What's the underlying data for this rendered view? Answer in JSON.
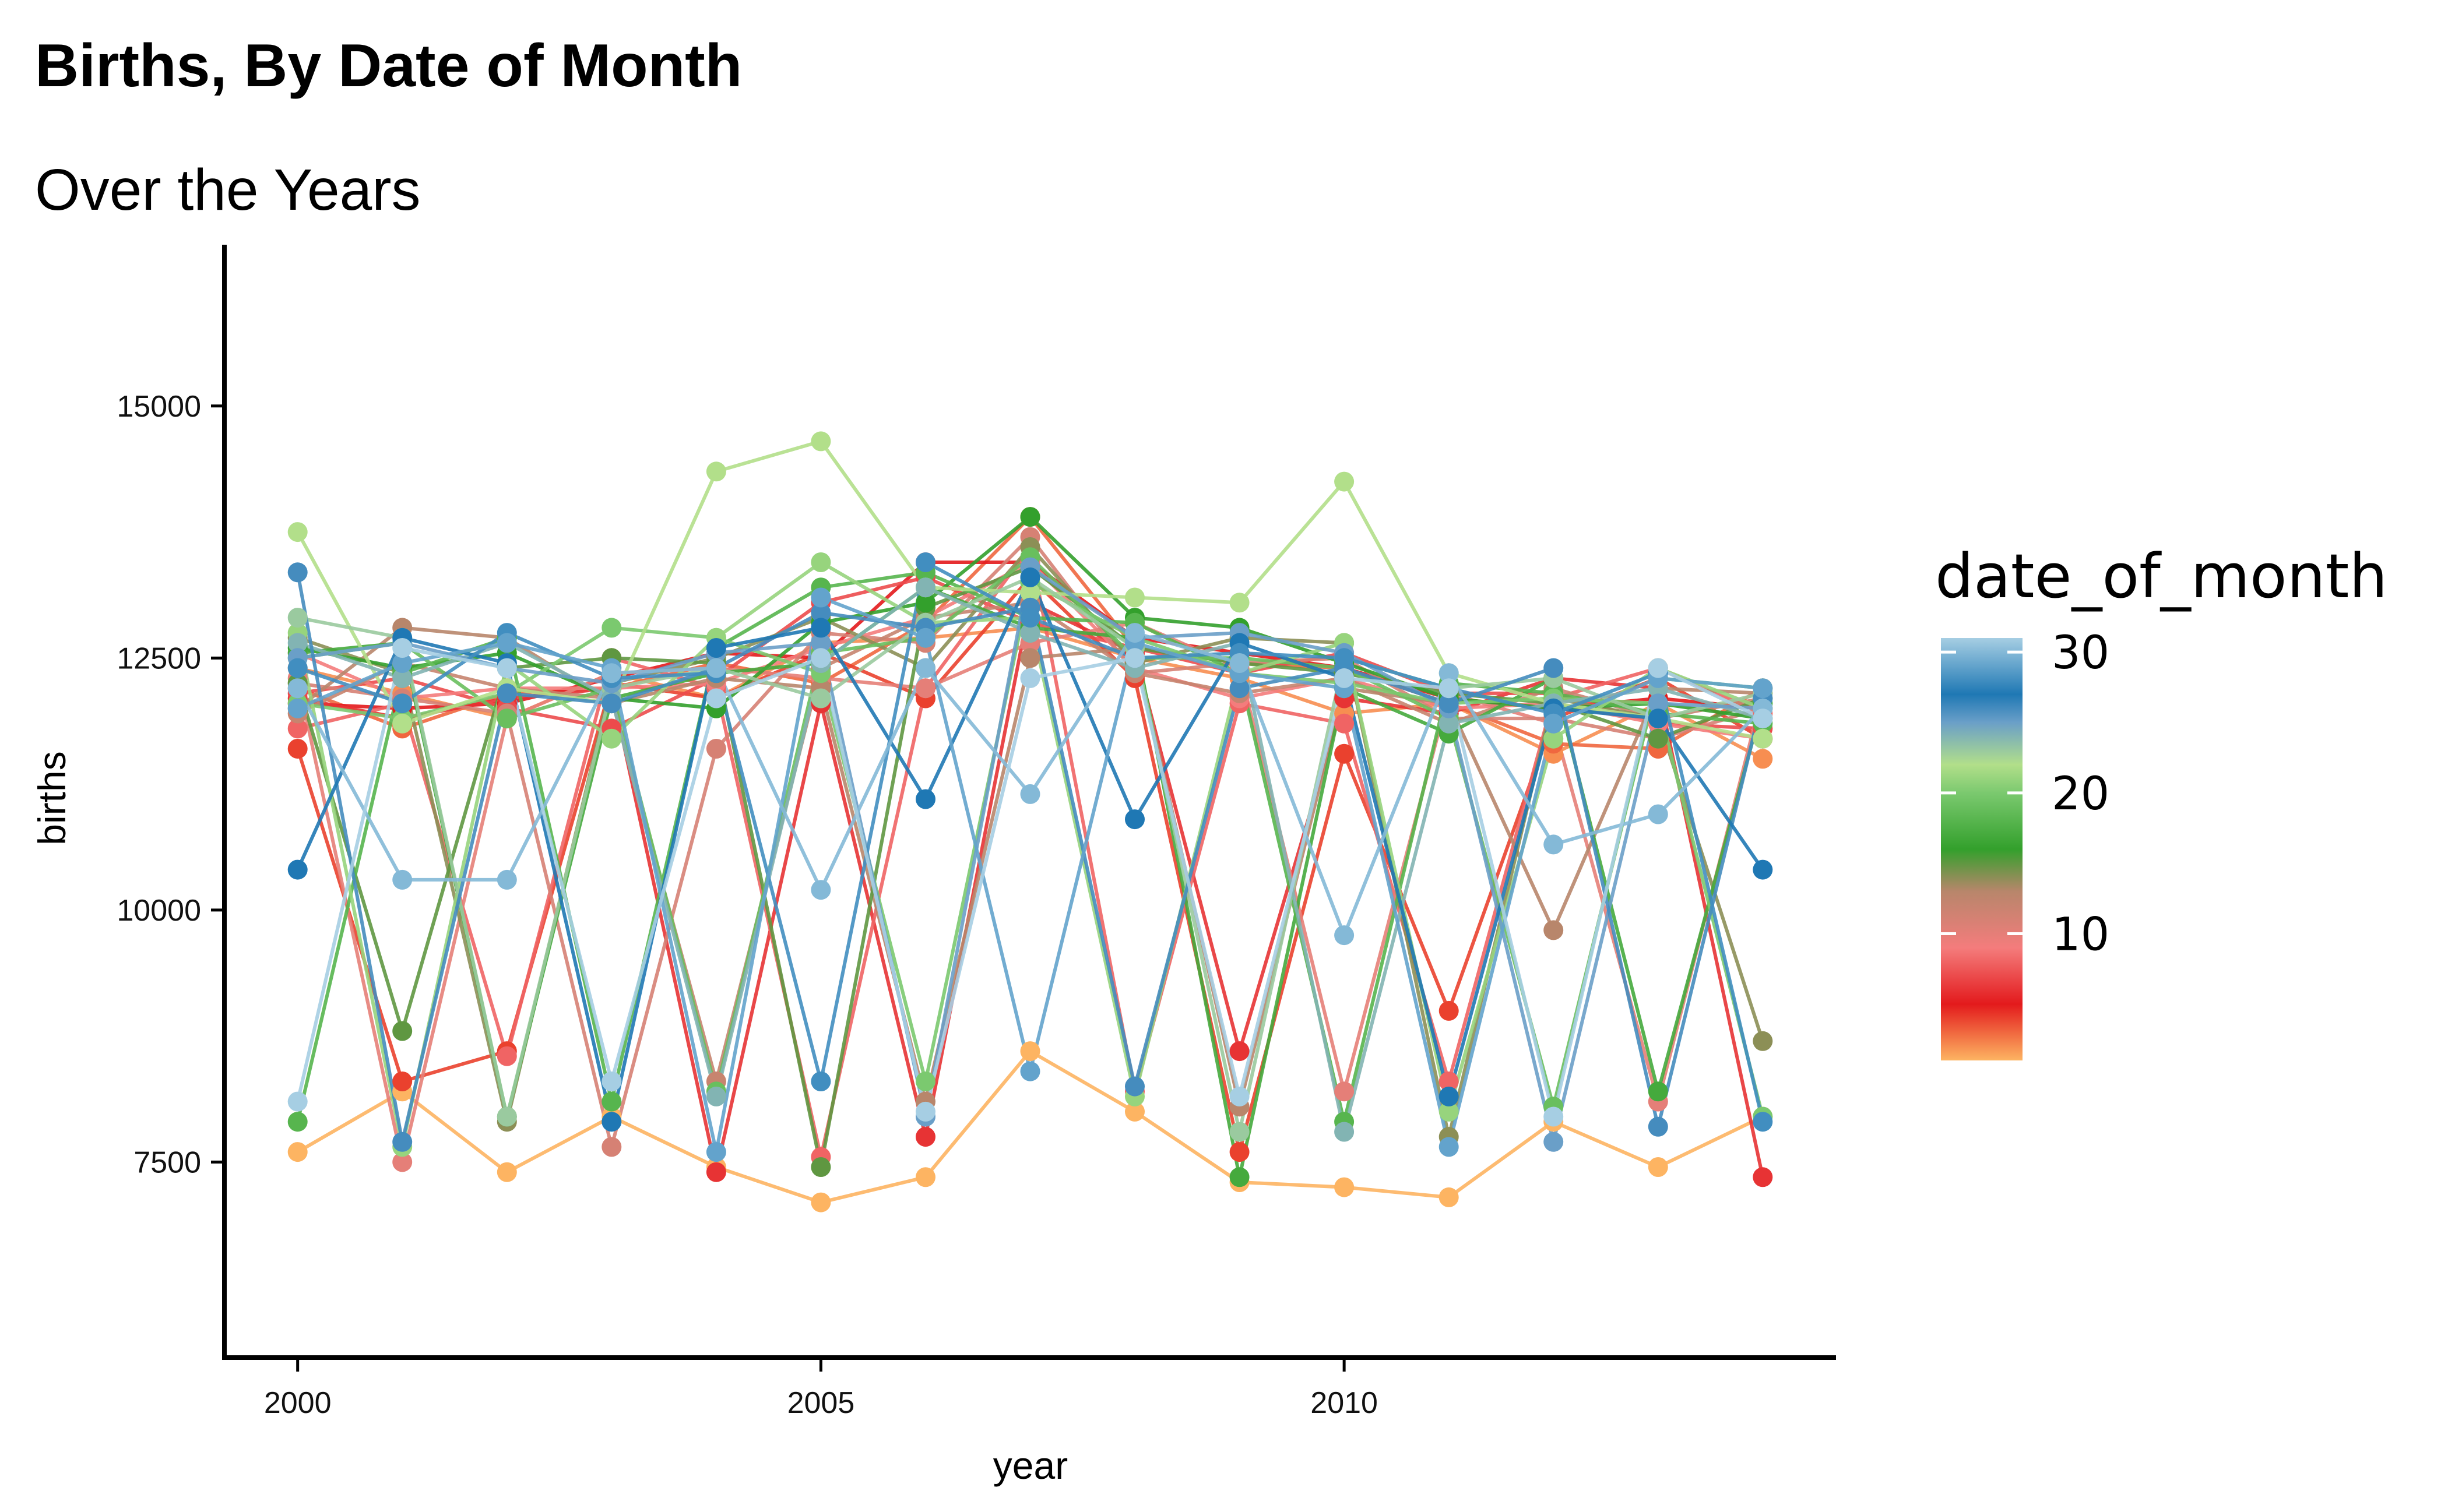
{
  "chart_data": {
    "type": "line",
    "title": "Births, By Date of Month",
    "subtitle": "Over the Years",
    "xlabel": "year",
    "ylabel": "births",
    "xlim": [
      1999.3,
      2014.7
    ],
    "ylim": [
      5560,
      16600
    ],
    "x_ticks": [
      2000,
      2005,
      2010
    ],
    "y_ticks": [
      7500,
      10000,
      12500,
      15000
    ],
    "grid": false,
    "legend": {
      "title": "date_of_month",
      "type": "colorbar",
      "position": "right",
      "range": [
        1,
        31
      ],
      "ticks": [
        10,
        20,
        30
      ],
      "color_stops": [
        {
          "value": 1,
          "color": "#FDB462"
        },
        {
          "value": 5,
          "color": "#E31A1C"
        },
        {
          "value": 9,
          "color": "#F47C7C"
        },
        {
          "value": 13,
          "color": "#B8866B"
        },
        {
          "value": 16,
          "color": "#33A02C"
        },
        {
          "value": 20,
          "color": "#7BC96F"
        },
        {
          "value": 22,
          "color": "#B2DF8A"
        },
        {
          "value": 25,
          "color": "#6A9FC8"
        },
        {
          "value": 27,
          "color": "#1F78B4"
        },
        {
          "value": 31,
          "color": "#A6CEE3"
        }
      ]
    },
    "years": [
      2000,
      2001,
      2002,
      2003,
      2004,
      2005,
      2006,
      2007,
      2008,
      2009,
      2010,
      2011,
      2012,
      2013,
      2014
    ],
    "series": [
      {
        "name": "1",
        "values": [
          7600,
          8200,
          7400,
          7950,
          7450,
          7100,
          7350,
          8600,
          8000,
          7300,
          7250,
          7150,
          7900,
          7450,
          7950
        ]
      },
      {
        "name": "2",
        "values": [
          12400,
          12150,
          11900,
          12350,
          12100,
          12650,
          12700,
          12800,
          12500,
          12300,
          11950,
          12050,
          11550,
          12050,
          11500
        ]
      },
      {
        "name": "3",
        "values": [
          12200,
          11800,
          12150,
          12200,
          12450,
          12250,
          12850,
          13900,
          12600,
          12450,
          12400,
          12050,
          11650,
          11600,
          12200
        ]
      },
      {
        "name": "4",
        "values": [
          11600,
          8300,
          8600,
          12250,
          12100,
          12550,
          12100,
          13300,
          12300,
          7600,
          11550,
          9000,
          11900,
          12300,
          11700
        ]
      },
      {
        "name": "5",
        "values": [
          12050,
          12000,
          12050,
          12300,
          12550,
          12500,
          13450,
          13450,
          12700,
          12550,
          12400,
          12100,
          12000,
          12100,
          12000
        ]
      },
      {
        "name": "6",
        "values": [
          12100,
          11900,
          12100,
          12200,
          7400,
          12050,
          7750,
          13050,
          12550,
          8600,
          12100,
          11950,
          12300,
          12200,
          7350
        ]
      },
      {
        "name": "7",
        "values": [
          12150,
          12300,
          12000,
          11800,
          12300,
          13050,
          13300,
          12850,
          12600,
          12350,
          12550,
          12150,
          12150,
          11850,
          11800
        ]
      },
      {
        "name": "8",
        "values": [
          11800,
          12050,
          8550,
          12500,
          12200,
          7550,
          12200,
          13600,
          8200,
          12050,
          11850,
          8300,
          12100,
          12400,
          11950
        ]
      },
      {
        "name": "9",
        "values": [
          12550,
          12100,
          12200,
          12200,
          12250,
          12600,
          12900,
          13450,
          12400,
          12100,
          12300,
          12000,
          12050,
          11850,
          11700
        ]
      },
      {
        "name": "10",
        "values": [
          12300,
          7500,
          11900,
          12350,
          12400,
          12300,
          12200,
          12650,
          12850,
          12400,
          8200,
          12150,
          11850,
          8100,
          12150
        ]
      },
      {
        "name": "11",
        "values": [
          12250,
          12100,
          11950,
          7650,
          11600,
          12750,
          12650,
          13700,
          12350,
          12450,
          12500,
          11900,
          11900,
          11700,
          12000
        ]
      },
      {
        "name": "12",
        "values": [
          11950,
          12450,
          12200,
          12100,
          8300,
          12400,
          12900,
          13050,
          12350,
          12150,
          12300,
          11850,
          12200,
          11900,
          12100
        ]
      },
      {
        "name": "13",
        "values": [
          12000,
          12800,
          12700,
          12050,
          12300,
          12200,
          8100,
          12500,
          12600,
          8050,
          12200,
          12050,
          9800,
          12200,
          12150
        ]
      },
      {
        "name": "14",
        "values": [
          12700,
          12350,
          7900,
          12250,
          12500,
          12900,
          12400,
          13600,
          12450,
          12700,
          12650,
          7750,
          12100,
          11900,
          8700
        ]
      },
      {
        "name": "15",
        "values": [
          12250,
          8800,
          12400,
          12500,
          12450,
          7450,
          13000,
          13400,
          12600,
          12450,
          12350,
          12150,
          12050,
          11700,
          12100
        ]
      },
      {
        "name": "16",
        "values": [
          12600,
          12400,
          12550,
          12100,
          12000,
          12850,
          13050,
          13900,
          12900,
          12800,
          12450,
          12100,
          12000,
          12050,
          11900
        ]
      },
      {
        "name": "17",
        "values": [
          12550,
          12650,
          7950,
          12100,
          12350,
          12450,
          13200,
          12800,
          12700,
          7350,
          12200,
          11750,
          12300,
          8200,
          12050
        ]
      },
      {
        "name": "18",
        "values": [
          7900,
          12350,
          12700,
          8100,
          12600,
          13200,
          13350,
          12900,
          12850,
          12350,
          7900,
          12250,
          12150,
          11950,
          11850
        ]
      },
      {
        "name": "19",
        "values": [
          12500,
          12650,
          11900,
          12200,
          8200,
          12550,
          12700,
          13500,
          12500,
          12500,
          12400,
          11900,
          8050,
          12300,
          12200
        ]
      },
      {
        "name": "20",
        "values": [
          12050,
          11900,
          12150,
          12800,
          12700,
          12350,
          8300,
          13250,
          12700,
          12350,
          12250,
          12050,
          12100,
          12050,
          7950
        ]
      },
      {
        "name": "21",
        "values": [
          12750,
          7650,
          12450,
          11700,
          12700,
          13450,
          12850,
          12900,
          8150,
          12350,
          12650,
          8000,
          11700,
          12400,
          12000
        ]
      },
      {
        "name": "22",
        "values": [
          13750,
          11850,
          12200,
          12050,
          14350,
          14650,
          13200,
          13150,
          13100,
          13050,
          14250,
          12350,
          12050,
          11900,
          11700
        ]
      },
      {
        "name": "23",
        "values": [
          12900,
          12700,
          7950,
          12200,
          12400,
          12100,
          12850,
          13300,
          12600,
          7800,
          12500,
          12200,
          12300,
          11900,
          12150
        ]
      },
      {
        "name": "24",
        "values": [
          12650,
          12300,
          12650,
          12100,
          8150,
          12450,
          13200,
          12750,
          12400,
          12650,
          7800,
          11850,
          12050,
          12200,
          11900
        ]
      },
      {
        "name": "25",
        "values": [
          12500,
          12650,
          12400,
          12250,
          12550,
          12650,
          7950,
          13400,
          12700,
          12750,
          12550,
          12000,
          7700,
          12050,
          12000
        ]
      },
      {
        "name": "26",
        "values": [
          13350,
          7700,
          12150,
          12050,
          12400,
          12950,
          12800,
          13000,
          8250,
          12200,
          12400,
          12050,
          12400,
          7850,
          12100
        ]
      },
      {
        "name": "27",
        "values": [
          10400,
          12700,
          12450,
          7900,
          12600,
          12800,
          11100,
          13300,
          10900,
          12650,
          12300,
          8150,
          12000,
          11900,
          10400
        ]
      },
      {
        "name": "28",
        "values": [
          12400,
          12050,
          12750,
          12300,
          12350,
          8300,
          13450,
          12900,
          12500,
          12550,
          12500,
          12200,
          11950,
          12350,
          7900
        ]
      },
      {
        "name": "29",
        "values": [
          12000,
          12450,
          12650,
          12400,
          7600,
          13100,
          12700,
          8400,
          12650,
          12350,
          12200,
          7650,
          11850,
          12300,
          12200
        ]
      },
      {
        "name": "30",
        "values": [
          12200,
          10300,
          10300,
          12350,
          12400,
          10200,
          12400,
          11150,
          12750,
          12450,
          9750,
          12350,
          10650,
          10950,
          12000
        ]
      },
      {
        "name": "31",
        "values": [
          8100,
          12600,
          12400,
          8300,
          12100,
          12500,
          8000,
          12300,
          12500,
          8150,
          12300,
          12200,
          7950,
          12400,
          11900
        ]
      }
    ]
  }
}
